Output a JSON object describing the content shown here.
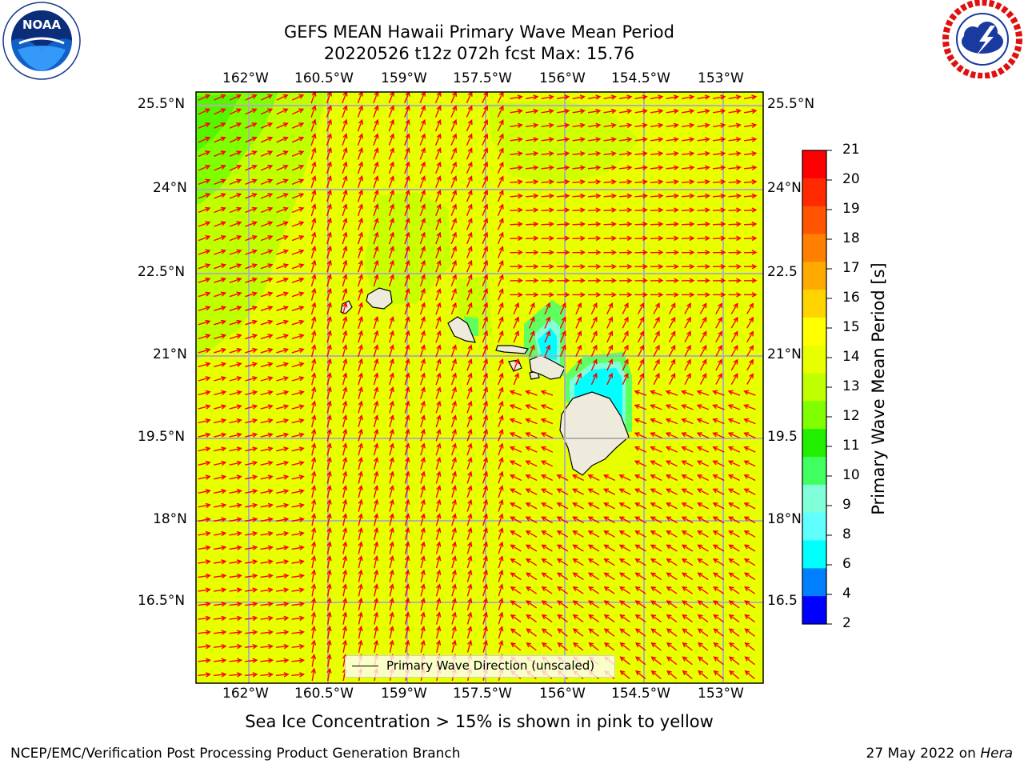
{
  "header": {
    "title_line1": "GEFS MEAN Hawaii Primary Wave Mean Period",
    "title_line2": "20220526 t12z 072h fcst   Max: 15.76"
  },
  "logos": {
    "left": {
      "name": "NOAA",
      "ring_text": "NATIONAL OCEANIC AND ATMOSPHERIC ADMINISTRATION • U.S. DEPARTMENT OF COMMERCE"
    },
    "right": {
      "name": "NATIONAL WEATHER SERVICE"
    }
  },
  "map": {
    "lon_labels": [
      "162°W",
      "160.5°W",
      "159°W",
      "157.5°W",
      "156°W",
      "154.5°W",
      "153°W"
    ],
    "lat_labels": [
      "25.5°N",
      "24°N",
      "22.5°N",
      "21°N",
      "19.5°N",
      "18°N",
      "16.5°N"
    ],
    "lat_labels_right": [
      "25.5°N",
      "24°N",
      "22.5",
      "21°N",
      "19.5",
      "18°N",
      "16.5"
    ],
    "ocean_color": "#e8ff00",
    "grid_color": "#b0b0b0",
    "arrow_color": "#ff0000",
    "land_color": "#efebdc",
    "legend_label": "Primary Wave Direction (unscaled)"
  },
  "colorbar": {
    "label": "Primary Wave Mean Period [s]",
    "ticks": [
      "21",
      "20",
      "19",
      "18",
      "17",
      "16",
      "15",
      "14",
      "13",
      "12",
      "11",
      "10",
      "9",
      "8",
      "6",
      "4",
      "2"
    ],
    "colors": [
      "#ff0000",
      "#ff2a00",
      "#ff5500",
      "#ff8000",
      "#ffaa00",
      "#ffd400",
      "#ffff00",
      "#e8ff00",
      "#c0ff00",
      "#80ff00",
      "#20f000",
      "#40ff60",
      "#80ffd8",
      "#60ffff",
      "#00ffff",
      "#0080ff",
      "#0000ff"
    ]
  },
  "footer": {
    "note": "Sea Ice Concentration > 15% is shown in pink to yellow",
    "left": "NCEP/EMC/Verification Post Processing Product Generation Branch",
    "right_prefix": "27 May 2022 on ",
    "right_host": "Hera"
  }
}
